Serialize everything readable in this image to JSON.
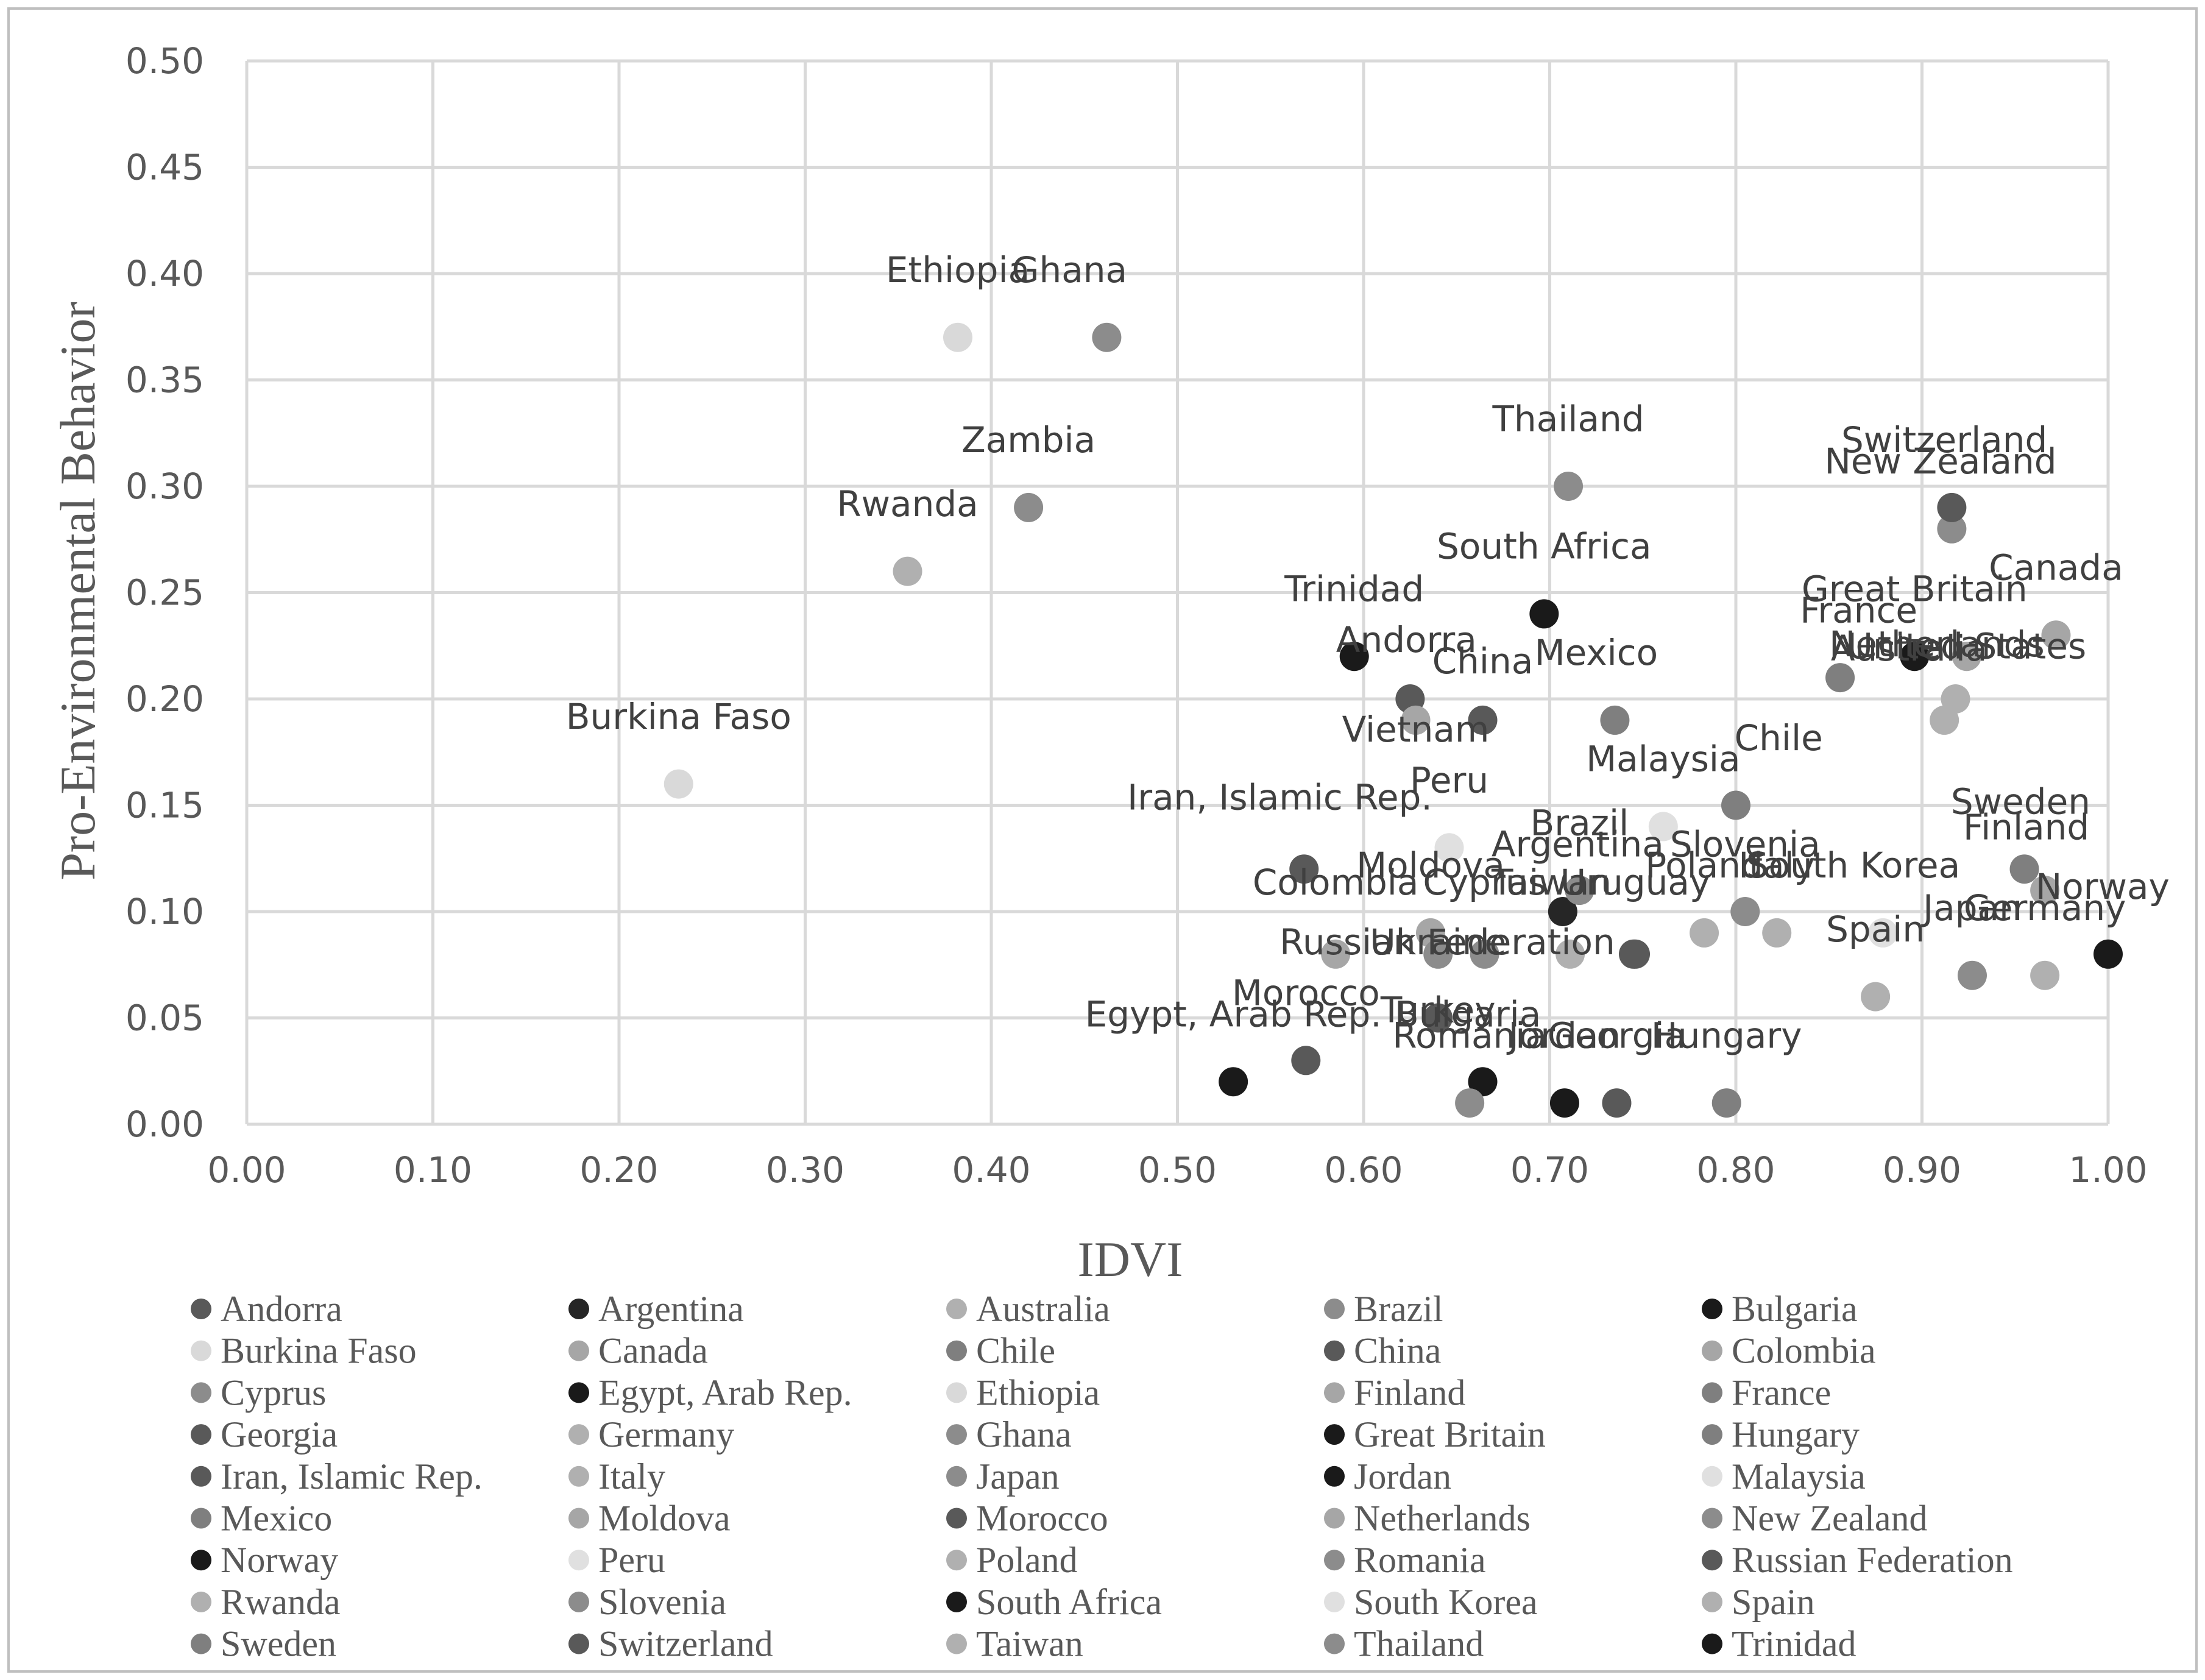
{
  "chart_data": {
    "type": "scatter",
    "title": "",
    "xlabel": "IDVI",
    "ylabel": "Pro-Environmental Behavior",
    "xlim": [
      0,
      1
    ],
    "ylim": [
      0,
      0.5
    ],
    "xticks": [
      "0.00",
      "0.10",
      "0.20",
      "0.30",
      "0.40",
      "0.50",
      "0.60",
      "0.70",
      "0.80",
      "0.90",
      "1.00"
    ],
    "yticks": [
      "0.00",
      "0.05",
      "0.10",
      "0.15",
      "0.20",
      "0.25",
      "0.30",
      "0.35",
      "0.40",
      "0.45",
      "0.50"
    ],
    "grid": true,
    "legend_position": "bottom",
    "series": [
      {
        "name": "Andorra",
        "x": 0.625,
        "y": 0.2,
        "label_dx": -0.002,
        "label_dy": 0.022,
        "color": "#595959"
      },
      {
        "name": "Argentina",
        "x": 0.707,
        "y": 0.1,
        "label_dx": 0.008,
        "label_dy": 0.026,
        "color": "#262626"
      },
      {
        "name": "Australia",
        "x": 0.918,
        "y": 0.2,
        "label_dx": -0.025,
        "label_dy": 0.018,
        "color": "#b0b0b0"
      },
      {
        "name": "Brazil",
        "x": 0.716,
        "y": 0.11,
        "label_dx": 0.0,
        "label_dy": 0.026,
        "color": "#8c8c8c"
      },
      {
        "name": "Bulgaria",
        "x": 0.664,
        "y": 0.02,
        "label_dx": -0.008,
        "label_dy": 0.026,
        "color": "#1a1a1a"
      },
      {
        "name": "Burkina Faso",
        "x": 0.232,
        "y": 0.16,
        "label_dx": 0.0,
        "label_dy": 0.026,
        "color": "#d9d9d9"
      },
      {
        "name": "Canada",
        "x": 0.972,
        "y": 0.23,
        "label_dx": 0.0,
        "label_dy": 0.026,
        "color": "#a6a6a6"
      },
      {
        "name": "Chile",
        "x": 0.8,
        "y": 0.15,
        "label_dx": 0.023,
        "label_dy": 0.026,
        "color": "#7f7f7f"
      },
      {
        "name": "China",
        "x": 0.664,
        "y": 0.19,
        "label_dx": 0.0,
        "label_dy": 0.022,
        "color": "#595959"
      },
      {
        "name": "Colombia",
        "x": 0.585,
        "y": 0.08,
        "label_dx": 0.0,
        "label_dy": 0.028,
        "color": "#a6a6a6"
      },
      {
        "name": "Cyprus",
        "x": 0.665,
        "y": 0.08,
        "label_dx": 0.0,
        "label_dy": 0.028,
        "color": "#8c8c8c"
      },
      {
        "name": "Egypt, Arab Rep.",
        "x": 0.53,
        "y": 0.02,
        "label_dx": 0.0,
        "label_dy": 0.026,
        "color": "#1a1a1a"
      },
      {
        "name": "Ethiopia",
        "x": 0.382,
        "y": 0.37,
        "label_dx": 0.0,
        "label_dy": 0.026,
        "color": "#d9d9d9"
      },
      {
        "name": "Finland",
        "x": 0.966,
        "y": 0.11,
        "label_dx": -0.01,
        "label_dy": 0.024,
        "color": "#a6a6a6"
      },
      {
        "name": "France",
        "x": 0.856,
        "y": 0.21,
        "label_dx": 0.01,
        "label_dy": 0.026,
        "color": "#7f7f7f"
      },
      {
        "name": "Georgia",
        "x": 0.736,
        "y": 0.01,
        "label_dx": 0.0,
        "label_dy": 0.026,
        "color": "#595959"
      },
      {
        "name": "Germany",
        "x": 0.966,
        "y": 0.07,
        "label_dx": 0.0,
        "label_dy": 0.026,
        "color": "#b0b0b0"
      },
      {
        "name": "Ghana",
        "x": 0.462,
        "y": 0.37,
        "label_dx": -0.02,
        "label_dy": 0.026,
        "color": "#8c8c8c"
      },
      {
        "name": "Great Britain",
        "x": 0.896,
        "y": 0.22,
        "label_dx": 0.0,
        "label_dy": 0.026,
        "color": "#1a1a1a"
      },
      {
        "name": "Hungary",
        "x": 0.795,
        "y": 0.01,
        "label_dx": 0.0,
        "label_dy": 0.026,
        "color": "#7f7f7f"
      },
      {
        "name": "Iran, Islamic Rep.",
        "x": 0.568,
        "y": 0.12,
        "label_dx": -0.013,
        "label_dy": 0.028,
        "color": "#595959"
      },
      {
        "name": "Italy",
        "x": 0.822,
        "y": 0.09,
        "label_dx": 0.0,
        "label_dy": 0.026,
        "color": "#b0b0b0"
      },
      {
        "name": "Japan",
        "x": 0.927,
        "y": 0.07,
        "label_dx": 0.0,
        "label_dy": 0.026,
        "color": "#8c8c8c"
      },
      {
        "name": "Jordan",
        "x": 0.708,
        "y": 0.01,
        "label_dx": 0.0,
        "label_dy": 0.026,
        "color": "#1a1a1a"
      },
      {
        "name": "Malaysia",
        "x": 0.761,
        "y": 0.14,
        "label_dx": 0.0,
        "label_dy": 0.026,
        "color": "#e0e0e0"
      },
      {
        "name": "Mexico",
        "x": 0.735,
        "y": 0.19,
        "label_dx": -0.01,
        "label_dy": 0.026,
        "color": "#7f7f7f"
      },
      {
        "name": "Moldova",
        "x": 0.636,
        "y": 0.09,
        "label_dx": 0.0,
        "label_dy": 0.026,
        "color": "#a6a6a6"
      },
      {
        "name": "Morocco",
        "x": 0.569,
        "y": 0.03,
        "label_dx": 0.0,
        "label_dy": 0.026,
        "color": "#595959"
      },
      {
        "name": "Netherlands",
        "x": 0.924,
        "y": 0.22,
        "label_dx": -0.016,
        "label_dy": 0.0,
        "color": "#a6a6a6"
      },
      {
        "name": "New Zealand",
        "x": 0.916,
        "y": 0.28,
        "label_dx": -0.006,
        "label_dy": 0.026,
        "color": "#8c8c8c"
      },
      {
        "name": "Norway",
        "x": 1.0,
        "y": 0.08,
        "label_dx": -0.003,
        "label_dy": 0.026,
        "color": "#1a1a1a"
      },
      {
        "name": "Peru",
        "x": 0.646,
        "y": 0.13,
        "label_dx": 0.0,
        "label_dy": 0.026,
        "color": "#e0e0e0"
      },
      {
        "name": "Poland",
        "x": 0.783,
        "y": 0.09,
        "label_dx": 0.0,
        "label_dy": 0.026,
        "color": "#b0b0b0"
      },
      {
        "name": "Romania",
        "x": 0.657,
        "y": 0.01,
        "label_dx": 0.0,
        "label_dy": 0.026,
        "color": "#8c8c8c"
      },
      {
        "name": "Russian Federation",
        "x": 0.745,
        "y": 0.08,
        "label_dx": -0.1,
        "label_dy": 0.0,
        "color": "#595959"
      },
      {
        "name": "Rwanda",
        "x": 0.355,
        "y": 0.26,
        "label_dx": 0.0,
        "label_dy": 0.026,
        "color": "#b0b0b0"
      },
      {
        "name": "Slovenia",
        "x": 0.805,
        "y": 0.1,
        "label_dx": 0.0,
        "label_dy": 0.026,
        "color": "#8c8c8c"
      },
      {
        "name": "South Africa",
        "x": 0.697,
        "y": 0.24,
        "label_dx": 0.0,
        "label_dy": 0.026,
        "color": "#1a1a1a"
      },
      {
        "name": "South Korea",
        "x": 0.879,
        "y": 0.09,
        "label_dx": -0.016,
        "label_dy": 0.026,
        "color": "#e0e0e0"
      },
      {
        "name": "Spain",
        "x": 0.875,
        "y": 0.06,
        "label_dx": 0.0,
        "label_dy": 0.026,
        "color": "#b0b0b0"
      },
      {
        "name": "Sweden",
        "x": 0.955,
        "y": 0.12,
        "label_dx": -0.002,
        "label_dy": 0.026,
        "color": "#7f7f7f"
      },
      {
        "name": "Switzerland",
        "x": 0.916,
        "y": 0.29,
        "label_dx": -0.004,
        "label_dy": 0.026,
        "color": "#595959"
      },
      {
        "name": "Taiwan",
        "x": 0.711,
        "y": 0.08,
        "label_dx": -0.01,
        "label_dy": 0.028,
        "color": "#b0b0b0"
      },
      {
        "name": "Thailand",
        "x": 0.71,
        "y": 0.3,
        "label_dx": 0.0,
        "label_dy": 0.026,
        "color": "#8c8c8c"
      },
      {
        "name": "Trinidad",
        "x": 0.595,
        "y": 0.22,
        "label_dx": 0.0,
        "label_dy": 0.026,
        "color": "#1a1a1a"
      },
      {
        "name": "Turkey",
        "x": 0.64,
        "y": 0.05,
        "label_dx": 0.0,
        "label_dy": -0.002,
        "color": "#595959"
      },
      {
        "name": "Ukraine",
        "x": 0.64,
        "y": 0.08,
        "label_dx": 0.0,
        "label_dy": 0.0,
        "color": "#8c8c8c"
      },
      {
        "name": "United States",
        "x": 0.912,
        "y": 0.19,
        "label_dx": 0.012,
        "label_dy": 0.029,
        "color": "#b0b0b0"
      },
      {
        "name": "Uruguay",
        "x": 0.746,
        "y": 0.08,
        "label_dx": 0.0,
        "label_dy": 0.028,
        "color": "#595959"
      },
      {
        "name": "Vietnam",
        "x": 0.628,
        "y": 0.19,
        "label_dx": 0.0,
        "label_dy": -0.01,
        "color": "#a6a6a6"
      },
      {
        "name": "Zambia",
        "x": 0.42,
        "y": 0.29,
        "label_dx": 0.0,
        "label_dy": 0.026,
        "color": "#8c8c8c"
      }
    ],
    "legend": [
      {
        "name": "Andorra",
        "color": "#595959"
      },
      {
        "name": "Argentina",
        "color": "#262626"
      },
      {
        "name": "Australia",
        "color": "#b0b0b0"
      },
      {
        "name": "Brazil",
        "color": "#8c8c8c"
      },
      {
        "name": "Bulgaria",
        "color": "#1a1a1a"
      },
      {
        "name": "Burkina Faso",
        "color": "#d9d9d9"
      },
      {
        "name": "Canada",
        "color": "#a6a6a6"
      },
      {
        "name": "Chile",
        "color": "#7f7f7f"
      },
      {
        "name": "China",
        "color": "#595959"
      },
      {
        "name": "Colombia",
        "color": "#a6a6a6"
      },
      {
        "name": "Cyprus",
        "color": "#8c8c8c"
      },
      {
        "name": "Egypt, Arab Rep.",
        "color": "#1a1a1a"
      },
      {
        "name": "Ethiopia",
        "color": "#d9d9d9"
      },
      {
        "name": "Finland",
        "color": "#a6a6a6"
      },
      {
        "name": "France",
        "color": "#7f7f7f"
      },
      {
        "name": "Georgia",
        "color": "#595959"
      },
      {
        "name": "Germany",
        "color": "#b0b0b0"
      },
      {
        "name": "Ghana",
        "color": "#8c8c8c"
      },
      {
        "name": "Great Britain",
        "color": "#1a1a1a"
      },
      {
        "name": "Hungary",
        "color": "#7f7f7f"
      },
      {
        "name": "Iran, Islamic Rep.",
        "color": "#595959"
      },
      {
        "name": "Italy",
        "color": "#b0b0b0"
      },
      {
        "name": "Japan",
        "color": "#8c8c8c"
      },
      {
        "name": "Jordan",
        "color": "#1a1a1a"
      },
      {
        "name": "Malaysia",
        "color": "#e0e0e0"
      },
      {
        "name": "Mexico",
        "color": "#7f7f7f"
      },
      {
        "name": "Moldova",
        "color": "#a6a6a6"
      },
      {
        "name": "Morocco",
        "color": "#595959"
      },
      {
        "name": "Netherlands",
        "color": "#a6a6a6"
      },
      {
        "name": "New Zealand",
        "color": "#8c8c8c"
      },
      {
        "name": "Norway",
        "color": "#1a1a1a"
      },
      {
        "name": "Peru",
        "color": "#e0e0e0"
      },
      {
        "name": "Poland",
        "color": "#b0b0b0"
      },
      {
        "name": "Romania",
        "color": "#8c8c8c"
      },
      {
        "name": "Russian Federation",
        "color": "#595959"
      },
      {
        "name": "Rwanda",
        "color": "#b0b0b0"
      },
      {
        "name": "Slovenia",
        "color": "#8c8c8c"
      },
      {
        "name": "South Africa",
        "color": "#1a1a1a"
      },
      {
        "name": "South Korea",
        "color": "#e0e0e0"
      },
      {
        "name": "Spain",
        "color": "#b0b0b0"
      },
      {
        "name": "Sweden",
        "color": "#7f7f7f"
      },
      {
        "name": "Switzerland",
        "color": "#595959"
      },
      {
        "name": "Taiwan",
        "color": "#b0b0b0"
      },
      {
        "name": "Thailand",
        "color": "#8c8c8c"
      },
      {
        "name": "Trinidad",
        "color": "#1a1a1a"
      }
    ]
  }
}
